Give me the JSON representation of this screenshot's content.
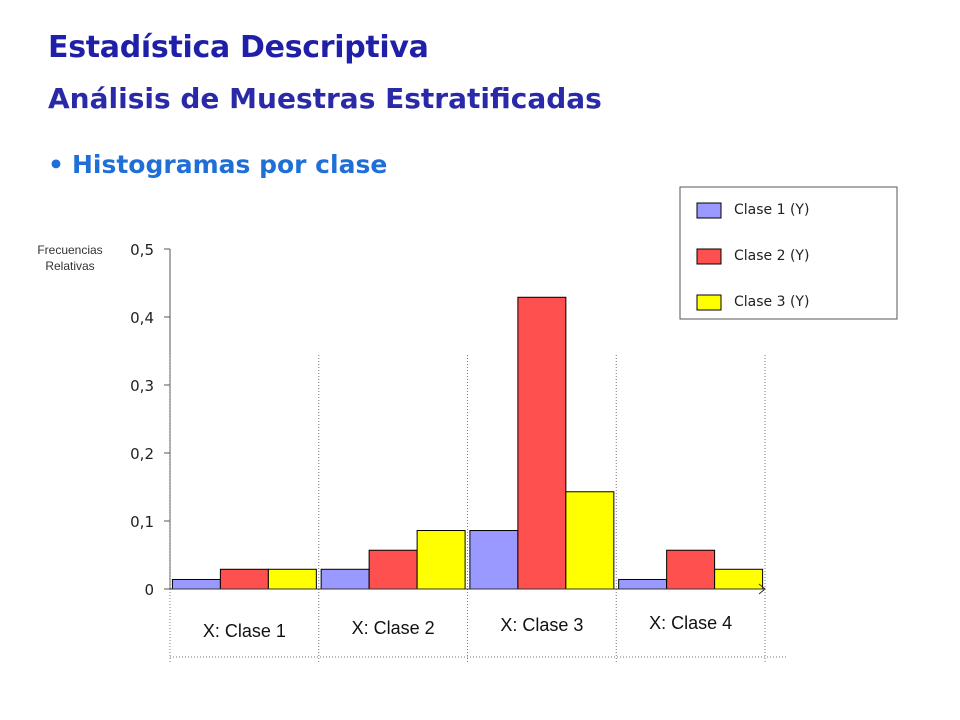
{
  "slide": {
    "title": "Estadística Descriptiva",
    "subtitle": "Análisis de Muestras Estratificadas",
    "bullet": "Histogramas por clase"
  },
  "chart_data": {
    "type": "bar",
    "title": "",
    "ylabel": "Frecuencias Relativas",
    "xlabel": "",
    "ylim": [
      0,
      0.5
    ],
    "y_ticks": [
      "0",
      "0,1",
      "0,2",
      "0,3",
      "0,4",
      "0,5"
    ],
    "categories": [
      "X: Clase 1",
      "X: Clase 2",
      "X: Clase 3",
      "X: Clase 4"
    ],
    "series": [
      {
        "name": "Clase 1 (Y)",
        "color": "#9999ff",
        "values": [
          0.014,
          0.029,
          0.086,
          0.014
        ]
      },
      {
        "name": "Clase 2 (Y)",
        "color": "#ff5050",
        "values": [
          0.029,
          0.057,
          0.429,
          0.057
        ]
      },
      {
        "name": "Clase 3 (Y)",
        "color": "#ffff00",
        "values": [
          0.029,
          0.086,
          0.143,
          0.029
        ]
      }
    ],
    "legend_position": "top-right",
    "grid": false
  }
}
